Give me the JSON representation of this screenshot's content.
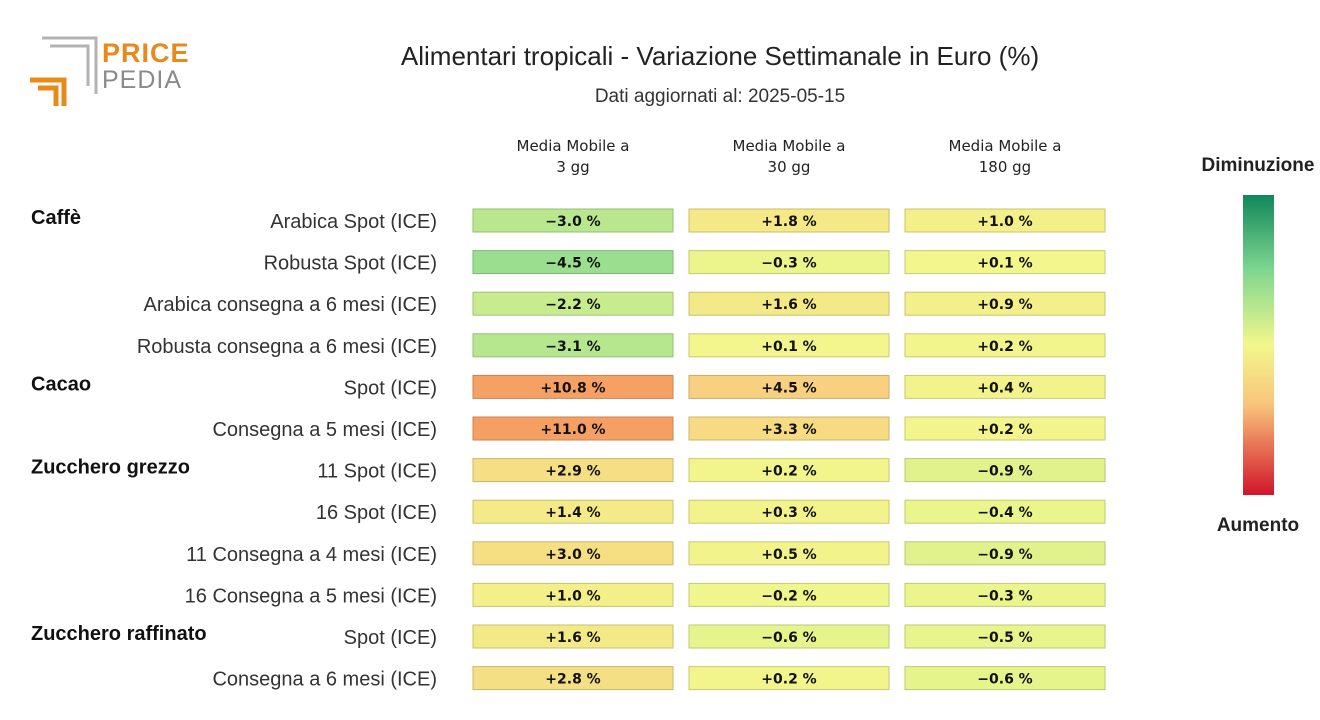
{
  "logo": {
    "word1": "PRICE",
    "word2": "PEDIA"
  },
  "title": "Alimentari tropicali - Variazione Settimanale in Euro (%)",
  "subtitle": "Dati aggiornati al: 2025-05-15",
  "legend": {
    "top": "Diminuzione",
    "bottom": "Aumento"
  },
  "colors": {
    "brand_orange": "#e8891a",
    "brand_gray": "#8a8a8a"
  },
  "chart_data": {
    "type": "heatmap",
    "columns": [
      [
        "Media Mobile a",
        "3 gg"
      ],
      [
        "Media Mobile a",
        "30 gg"
      ],
      [
        "Media Mobile a",
        "180 gg"
      ]
    ],
    "groups": [
      {
        "name": "Caffè",
        "rows": [
          {
            "label": "Arabica Spot (ICE)",
            "values": [
              -3.0,
              1.8,
              1.0
            ],
            "texts": [
              "−3.0 %",
              "+1.8 %",
              "+1.0 %"
            ]
          },
          {
            "label": "Robusta Spot (ICE)",
            "values": [
              -4.5,
              -0.3,
              0.1
            ],
            "texts": [
              "−4.5 %",
              "−0.3 %",
              "+0.1 %"
            ]
          },
          {
            "label": "Arabica consegna a 6 mesi (ICE)",
            "values": [
              -2.2,
              1.6,
              0.9
            ],
            "texts": [
              "−2.2 %",
              "+1.6 %",
              "+0.9 %"
            ]
          },
          {
            "label": "Robusta consegna a 6 mesi (ICE)",
            "values": [
              -3.1,
              0.1,
              0.2
            ],
            "texts": [
              "−3.1 %",
              "+0.1 %",
              "+0.2 %"
            ]
          }
        ]
      },
      {
        "name": "Cacao",
        "rows": [
          {
            "label": "Spot (ICE)",
            "values": [
              10.8,
              4.5,
              0.4
            ],
            "texts": [
              "+10.8 %",
              "+4.5 %",
              "+0.4 %"
            ]
          },
          {
            "label": "Consegna a 5 mesi (ICE)",
            "values": [
              11.0,
              3.3,
              0.2
            ],
            "texts": [
              "+11.0 %",
              "+3.3 %",
              "+0.2 %"
            ]
          }
        ]
      },
      {
        "name": "Zucchero grezzo",
        "rows": [
          {
            "label": "11 Spot (ICE)",
            "values": [
              2.9,
              0.2,
              -0.9
            ],
            "texts": [
              "+2.9 %",
              "+0.2 %",
              "−0.9 %"
            ]
          },
          {
            "label": "16 Spot (ICE)",
            "values": [
              1.4,
              0.3,
              -0.4
            ],
            "texts": [
              "+1.4 %",
              "+0.3 %",
              "−0.4 %"
            ]
          },
          {
            "label": "11 Consegna a 4 mesi (ICE)",
            "values": [
              3.0,
              0.5,
              -0.9
            ],
            "texts": [
              "+3.0 %",
              "+0.5 %",
              "−0.9 %"
            ]
          },
          {
            "label": "16 Consegna a 5 mesi (ICE)",
            "values": [
              1.0,
              -0.2,
              -0.3
            ],
            "texts": [
              "+1.0 %",
              "−0.2 %",
              "−0.3 %"
            ]
          }
        ]
      },
      {
        "name": "Zucchero raffinato",
        "rows": [
          {
            "label": "Spot (ICE)",
            "values": [
              1.6,
              -0.6,
              -0.5
            ],
            "texts": [
              "+1.6 %",
              "−0.6 %",
              "−0.5 %"
            ]
          },
          {
            "label": "Consegna a 6 mesi (ICE)",
            "values": [
              2.8,
              0.2,
              -0.6
            ],
            "texts": [
              "+2.8 %",
              "+0.2 %",
              "−0.6 %"
            ]
          }
        ]
      }
    ],
    "color_scale": {
      "decrease_color": "#11875a",
      "neutral_color": "#f2f78c",
      "increase_color": "#d0152a"
    }
  }
}
